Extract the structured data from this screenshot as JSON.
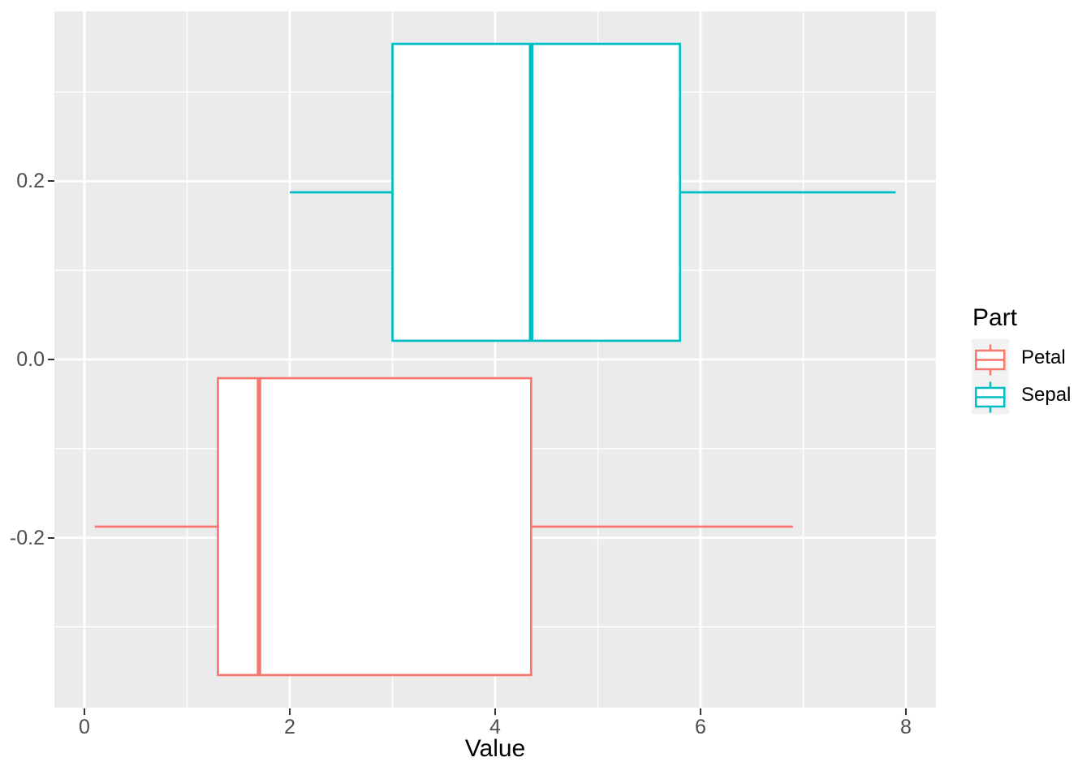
{
  "chart_data": {
    "type": "boxplot",
    "orientation": "horizontal",
    "xlabel": "Value",
    "ylabel": "",
    "grid": true,
    "x_axis": {
      "ticks": [
        0,
        2,
        4,
        6,
        8
      ],
      "tick_labels": [
        "0",
        "2",
        "4",
        "6",
        "8"
      ],
      "minor_ticks": [
        1,
        3,
        5,
        7
      ],
      "range": [
        -0.2925,
        8.2925
      ]
    },
    "y_axis": {
      "ticks": [
        {
          "value": 0.2,
          "label": "0.2"
        },
        {
          "value": 0.0,
          "label": "0.0"
        },
        {
          "value": -0.2,
          "label": "-0.2"
        }
      ],
      "minor_ticks": [
        0.3,
        0.1,
        -0.1,
        -0.3
      ],
      "range": [
        -0.3905,
        0.3905
      ]
    },
    "series": [
      {
        "name": "Sepal",
        "color": "#00BFC4",
        "center": 0.1875,
        "half_height": 0.1665,
        "whisker_min": 2.0,
        "q1": 3.0,
        "median": 4.35,
        "q3": 5.8,
        "whisker_max": 7.9
      },
      {
        "name": "Petal",
        "color": "#F8766D",
        "center": -0.1875,
        "half_height": 0.1665,
        "whisker_min": 0.1,
        "q1": 1.3,
        "median": 1.7,
        "q3": 4.35,
        "whisker_max": 6.9
      }
    ],
    "legend": {
      "title": "Part",
      "position": "right",
      "entries": [
        {
          "label": "Petal",
          "color": "#F8766D"
        },
        {
          "label": "Sepal",
          "color": "#00BFC4"
        }
      ]
    }
  },
  "colors": {
    "panel_background": "#EBEBEB",
    "gridline": "#FFFFFF",
    "axis_text": "#4D4D4D",
    "tick_mark": "#333333",
    "legend_key_background": "#F2F2F2",
    "title_text": "#000000",
    "box_fill": "#FFFFFF"
  }
}
